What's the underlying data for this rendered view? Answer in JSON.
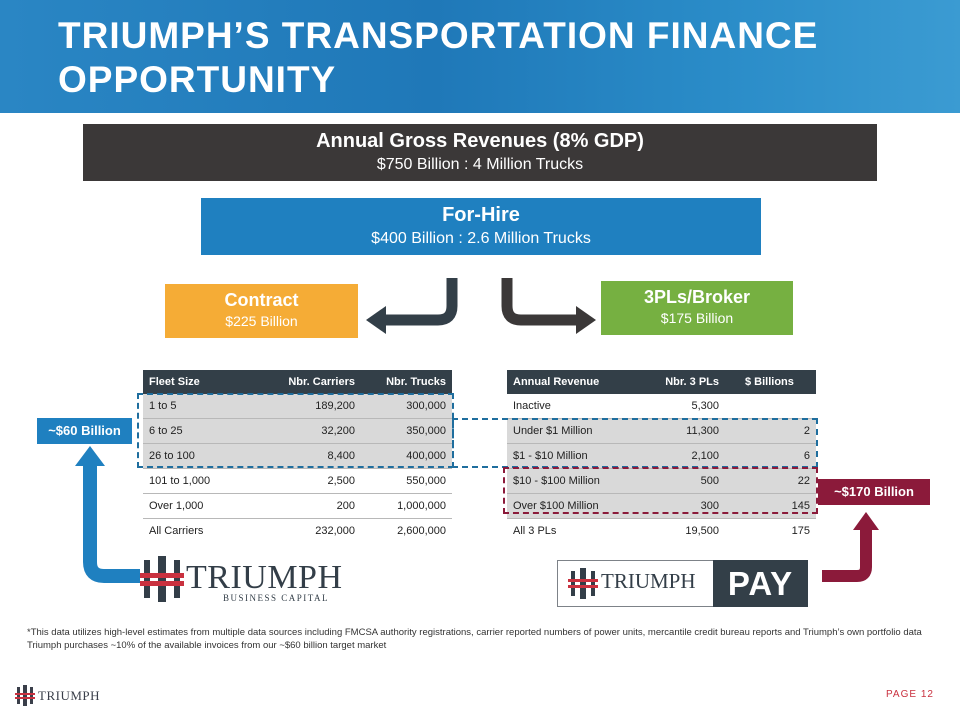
{
  "header": {
    "title": "TRIUMPH’S TRANSPORTATION FINANCE OPPORTUNITY"
  },
  "gross": {
    "title": "Annual Gross Revenues  (8%  GDP)",
    "subtitle": "$750 Billion : 4 Million Trucks"
  },
  "for_hire": {
    "title": "For-Hire",
    "subtitle": "$400 Billion : 2.6 Million Trucks"
  },
  "contract": {
    "title": "Contract",
    "subtitle": "$225 Billion"
  },
  "broker": {
    "title": "3PLs/Broker",
    "subtitle": "$175 Billion"
  },
  "fleet_table": {
    "headers": [
      "Fleet Size",
      "Nbr. Carriers",
      "Nbr. Trucks"
    ],
    "rows": [
      [
        "1 to 5",
        "189,200",
        "300,000"
      ],
      [
        "6 to 25",
        "32,200",
        "350,000"
      ],
      [
        "26 to 100",
        "8,400",
        "400,000"
      ],
      [
        "101 to 1,000",
        "2,500",
        "550,000"
      ],
      [
        "Over 1,000",
        "200",
        "1,000,000"
      ],
      [
        "All Carriers",
        "232,000",
        "2,600,000"
      ]
    ]
  },
  "revenue_table": {
    "headers": [
      "Annual Revenue",
      "Nbr. 3 PLs",
      "$ Billions"
    ],
    "rows": [
      [
        "Inactive",
        "5,300",
        ""
      ],
      [
        "Under $1 Million",
        "11,300",
        "2"
      ],
      [
        "$1 - $10 Million",
        "2,100",
        "6"
      ],
      [
        "$10 - $100 Million",
        "500",
        "22"
      ],
      [
        "Over $100 Million",
        "300",
        "145"
      ],
      [
        "All 3 PLs",
        "19,500",
        "175"
      ]
    ]
  },
  "callouts": {
    "left": "~$60 Billion",
    "right": "~$170 Billion"
  },
  "logos": {
    "business_capital_word": "TRIUMPH",
    "business_capital_sub": "BUSINESS CAPITAL",
    "pay_word": "TRIUMPH",
    "pay_label": "PAY",
    "footer_word": "TRIUMPH"
  },
  "footnote": {
    "line1": "*This data utilizes high-level estimates from multiple data sources including FMCSA authority registrations, carrier reported numbers of power units, mercantile credit bureau reports and Triumph’s own portfolio data",
    "line2": "Triumph purchases ~10% of the available invoices from our ~$60 billion target market"
  },
  "footer": {
    "page": "PAGE  12"
  },
  "colors": {
    "header_blue": "#1f78b8",
    "dark": "#3b3838",
    "blue": "#1f80c0",
    "orange": "#f5ac36",
    "green": "#76b041",
    "maroon": "#8b1a3a",
    "navy": "#333f48"
  }
}
